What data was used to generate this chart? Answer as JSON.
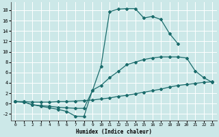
{
  "xlabel": "Humidex (Indice chaleur)",
  "bg_color": "#cce8e8",
  "grid_color": "#ffffff",
  "line_color": "#1a6b6b",
  "xlim": [
    -0.5,
    23.5
  ],
  "ylim": [
    -3.2,
    19.5
  ],
  "yticks": [
    -2,
    0,
    2,
    4,
    6,
    8,
    10,
    12,
    14,
    16,
    18
  ],
  "xticks": [
    0,
    1,
    2,
    3,
    4,
    5,
    6,
    7,
    8,
    9,
    10,
    11,
    12,
    13,
    14,
    15,
    16,
    17,
    18,
    19,
    20,
    21,
    22,
    23
  ],
  "series": [
    {
      "x": [
        0,
        1,
        2,
        3,
        4,
        5,
        6,
        7,
        8,
        9,
        10,
        11,
        12,
        13,
        14,
        15,
        16,
        17,
        18,
        19
      ],
      "y": [
        0.4,
        0.3,
        -0.2,
        -0.4,
        -0.5,
        -0.7,
        -0.8,
        -0.9,
        -0.9,
        2.5,
        7.2,
        17.7,
        18.2,
        18.3,
        18.3,
        16.5,
        16.8,
        16.2,
        13.5,
        11.5
      ]
    },
    {
      "x": [
        0,
        1,
        2,
        3,
        4,
        5,
        6,
        7,
        8,
        9,
        10,
        11,
        12,
        13,
        14,
        15,
        16,
        17,
        18,
        19,
        20,
        21,
        22,
        23
      ],
      "y": [
        0.4,
        0.3,
        -0.2,
        -0.5,
        -0.8,
        -1.1,
        -1.5,
        -2.4,
        -2.5,
        2.6,
        3.5,
        5.0,
        6.2,
        7.5,
        8.0,
        8.5,
        8.8,
        9.0,
        9.0,
        9.0,
        8.8,
        6.3,
        5.0,
        4.1
      ]
    },
    {
      "x": [
        0,
        1,
        2,
        3,
        4,
        5,
        6,
        7,
        8,
        9,
        10,
        11,
        12,
        13,
        14,
        15,
        16,
        17,
        18,
        19,
        20,
        21,
        22,
        23
      ],
      "y": [
        0.4,
        0.4,
        0.3,
        0.3,
        0.3,
        0.4,
        0.4,
        0.5,
        0.6,
        0.7,
        0.9,
        1.1,
        1.4,
        1.6,
        1.9,
        2.2,
        2.5,
        2.8,
        3.2,
        3.5,
        3.7,
        3.9,
        4.1,
        4.2
      ]
    }
  ]
}
